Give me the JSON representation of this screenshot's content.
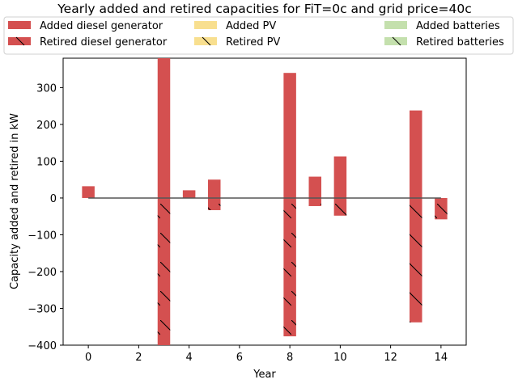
{
  "chart_data": {
    "type": "bar",
    "title": "Yearly added and retired capacities for FiT=0c and grid price=40c",
    "xlabel": "Year",
    "ylabel": "Capacity added and retired in kW",
    "xlim": [
      -1,
      15
    ],
    "ylim": [
      -400,
      380
    ],
    "xticks": [
      0,
      2,
      4,
      6,
      8,
      10,
      12,
      14
    ],
    "yticks": [
      -400,
      -300,
      -200,
      -100,
      0,
      100,
      200,
      300
    ],
    "legend_position": "top",
    "colors": {
      "diesel": "#d45050",
      "pv": "#f8df8f",
      "batteries": "#c4e0ad",
      "zero_line": "#555555"
    },
    "series": [
      {
        "name": "Added diesel generator",
        "kind": "added",
        "tech": "diesel",
        "x": [
          0,
          3,
          4,
          5,
          8,
          9,
          10,
          13
        ],
        "values": [
          32,
          380,
          21,
          50,
          340,
          58,
          113,
          238
        ]
      },
      {
        "name": "Added PV",
        "kind": "added",
        "tech": "pv",
        "x": [],
        "values": []
      },
      {
        "name": "Added batteries",
        "kind": "added",
        "tech": "batteries",
        "x": [],
        "values": []
      },
      {
        "name": "Retired diesel generator",
        "kind": "retired",
        "tech": "diesel",
        "x": [
          3,
          5,
          8,
          9,
          10,
          13,
          14
        ],
        "values": [
          -400,
          -33,
          -376,
          -22,
          -48,
          -338,
          -58
        ]
      },
      {
        "name": "Retired PV",
        "kind": "retired",
        "tech": "pv",
        "x": [],
        "values": []
      },
      {
        "name": "Retired batteries",
        "kind": "retired",
        "tech": "batteries",
        "x": [],
        "values": []
      }
    ]
  }
}
